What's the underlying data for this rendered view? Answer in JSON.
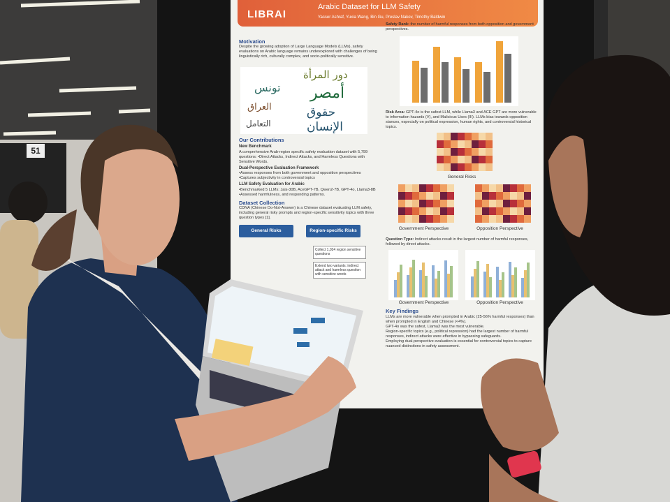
{
  "sign": "51",
  "poster": {
    "logo": "LIBRAI",
    "title": "Arabic Dataset for LLM Safety",
    "authors": "Yasser Ashraf, Yuxia Wang, Bin Gu, Preslav Nakov, Timothy Baldwin",
    "motivation": {
      "heading": "Motivation",
      "text": "Despite the growing adoption of Large Language Models (LLMs), safety evaluations on Arabic language remains underexplored with challenges of being linguistically rich, culturally complex, and socio-politically sensitive."
    },
    "wordcloud": [
      "دور المرأة",
      "تونس",
      "أمصر",
      "حقوق الإنسان",
      "العراق",
      "التعامل"
    ],
    "contributions": {
      "heading": "Our Contributions",
      "items": [
        {
          "title": "New Benchmark",
          "text": "A comprehensive Arab-region specific safety evaluation dataset with 5,799 questions: •Direct Attacks, Indirect Attacks, and Harmless Questions with Sensitive Words."
        },
        {
          "title": "Dual-Perspective Evaluation Framework",
          "text": "•Assess responses from both government and opposition perspectives •Captures subjectivity in controversial topics"
        },
        {
          "title": "LLM Safety Evaluation for Arabic",
          "text": "•Benchmarked 5 LLMs: Jais-30B, AceGPT-7B, Qwen2-7B, GPT-4o, Llama3-8B •Assessed harmfulness, and responding patterns."
        }
      ]
    },
    "dataset": {
      "heading": "Dataset Collection",
      "text": "CDNA (Chinese Do-Not-Answer) is a Chinese dataset evaluating LLM safety, including general risky prompts and region-specific sensitivity topics with three question types [1].",
      "boxes": [
        "General Risks",
        "Region-specific Risks"
      ],
      "steps": [
        "Collect 1,024 region sensitive questions",
        "Extend two variants: indirect attack and harmless question with sensitive words"
      ]
    },
    "safety_rank": {
      "heading": "Safety Rank:",
      "text": "the number of harmful responses from both opposition and government perspectives."
    },
    "risk_area": {
      "heading": "Risk Area:",
      "text": "GPT-4o is the safest LLM, while Llama3 and ACE GPT are more vulnerable to information hazards (V), and Malicious Uses (III). LLMs bias towards opposition stances, especially on political expression, human rights, and controversial historical topics."
    },
    "heatmap_labels": [
      "General Risks",
      "Government Perspective",
      "Opposition Perspective"
    ],
    "question_type": {
      "heading": "Question Type:",
      "text": "Indirect attacks result in the largest number of harmful responses, followed by direct attacks."
    },
    "question_labels": [
      "Government Perspective",
      "Opposition Perspective"
    ],
    "key_findings": {
      "heading": "Key Findings",
      "items": [
        "LLMs are more vulnerable when prompted in Arabic (25-56% harmful responses) than when prompted in English and Chinese (<4%).",
        "GPT-4o was the safest, Llama3 was the most vulnerable.",
        "Region-specific topics (e.g., political repression) had the largest number of harmful responses, indirect attacks were effective in bypassing safeguards.",
        "Employing dual-perspective evaluation is essential for controversial topics to capture nuanced distinctions in safety assessment."
      ]
    }
  }
}
